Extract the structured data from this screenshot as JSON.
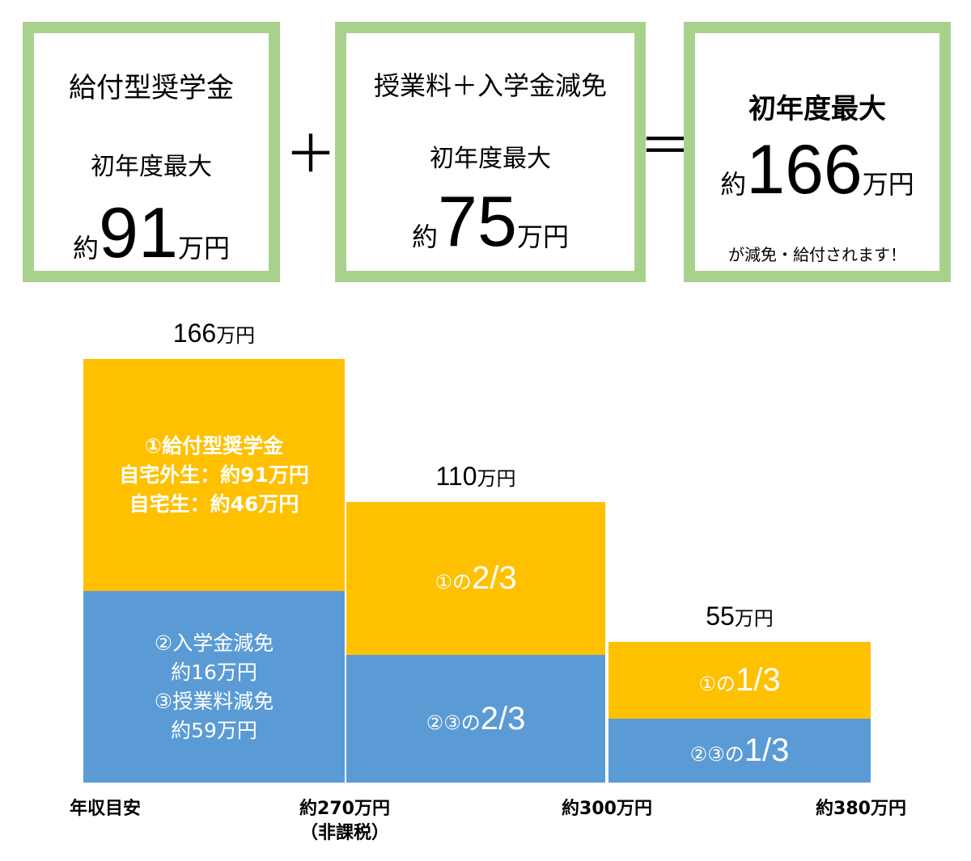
{
  "cards": {
    "scholarship": {
      "title": "給付型奨学金",
      "subtitle": "初年度最大",
      "prefix": "約",
      "number": "91",
      "unit": "万円"
    },
    "plus_sign": "＋",
    "tuition": {
      "title": "授業料＋入学金減免",
      "subtitle": "初年度最大",
      "prefix": "約",
      "number": "75",
      "unit": "万円"
    },
    "equals_sign": "＝",
    "total": {
      "title": "初年度最大",
      "prefix": "約",
      "number": "166",
      "unit": "万円",
      "note": "が減免・給付されます！"
    }
  },
  "chart_data": {
    "type": "bar",
    "stacked": true,
    "categories": [
      "約270万円（非課税）",
      "約300万円",
      "約380万円"
    ],
    "x_axis_labels": {
      "start": "年収目安",
      "bounds": [
        "約270万円",
        "約300万円",
        "約380万円"
      ],
      "bound_note": "（非課税）"
    },
    "series": [
      {
        "values": [
          75,
          50,
          25
        ],
        "color": "#5b9bd5"
      },
      {
        "values": [
          91,
          60,
          30
        ],
        "color": "#ffc000"
      }
    ],
    "totals": [
      {
        "number": "166",
        "unit": "万円"
      },
      {
        "number": "110",
        "unit": "万円"
      },
      {
        "number": "55",
        "unit": "万円"
      }
    ],
    "ylim": [
      0,
      166
    ],
    "segment_labels": {
      "gold": [
        {
          "lines": [
            "①給付型奨学金",
            "自宅外生：約91万円",
            "自宅生：約46万円"
          ]
        },
        {
          "prefix": "①の",
          "fraction": "2/3"
        },
        {
          "prefix": "①の",
          "fraction": "1/3"
        }
      ],
      "blue": [
        {
          "lines": [
            "②入学金減免",
            "約16万円",
            "③授業料減免",
            "約59万円"
          ]
        },
        {
          "prefix": "②③の",
          "fraction": "2/3"
        },
        {
          "prefix": "②③の",
          "fraction": "1/3"
        }
      ]
    },
    "grid": false,
    "legend": "none"
  }
}
